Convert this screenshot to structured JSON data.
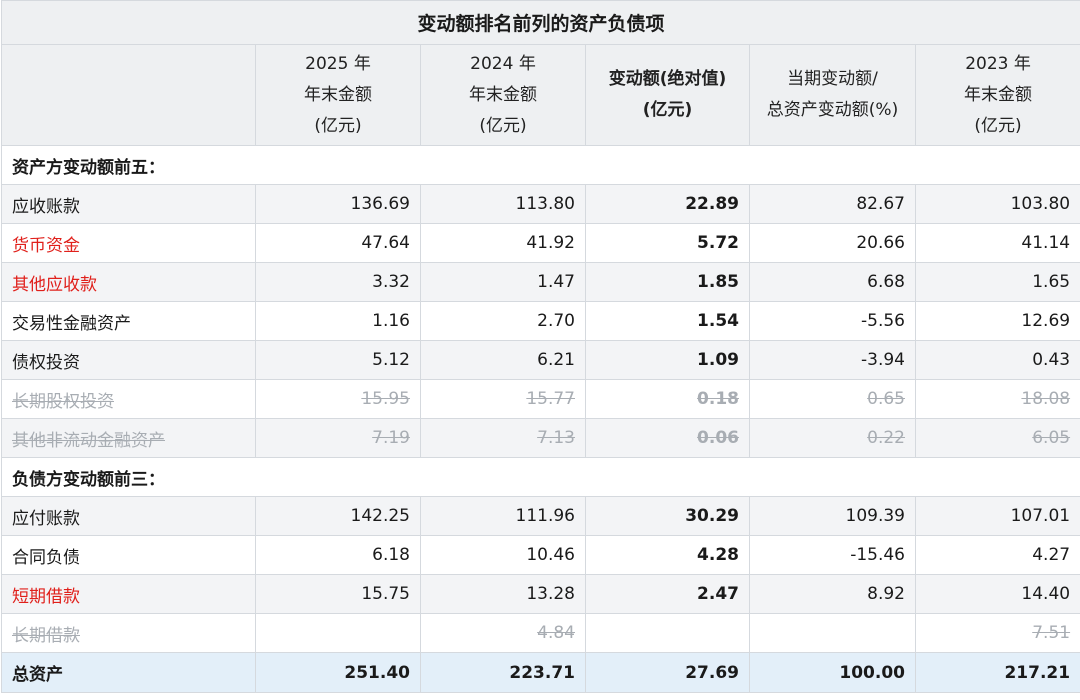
{
  "title": "变动额排名前列的资产负债项",
  "columns": [
    {
      "lines": [
        "2025 年",
        "年末金额",
        "(亿元)"
      ]
    },
    {
      "lines": [
        "2024 年",
        "年末金额",
        "(亿元)"
      ]
    },
    {
      "lines": [
        "变动额(绝对值)",
        "(亿元)"
      ]
    },
    {
      "lines": [
        "当期变动额/",
        "总资产变动额(%)"
      ]
    },
    {
      "lines": [
        "2023 年",
        "年末金额",
        "(亿元)"
      ]
    }
  ],
  "sections": [
    {
      "label": "资产方变动额前五：",
      "rows": [
        {
          "name": "应收账款",
          "y2025": "136.69",
          "y2024": "113.80",
          "change": "22.89",
          "ratio": "82.67",
          "y2023": "103.80"
        },
        {
          "name": "货币资金",
          "y2025": "47.64",
          "y2024": "41.92",
          "change": "5.72",
          "ratio": "20.66",
          "y2023": "41.14"
        },
        {
          "name": "其他应收款",
          "y2025": "3.32",
          "y2024": "1.47",
          "change": "1.85",
          "ratio": "6.68",
          "y2023": "1.65"
        },
        {
          "name": "交易性金融资产",
          "y2025": "1.16",
          "y2024": "2.70",
          "change": "1.54",
          "ratio": "-5.56",
          "y2023": "12.69"
        },
        {
          "name": "债权投资",
          "y2025": "5.12",
          "y2024": "6.21",
          "change": "1.09",
          "ratio": "-3.94",
          "y2023": "0.43"
        },
        {
          "name": "长期股权投资",
          "y2025": "15.95",
          "y2024": "15.77",
          "change": "0.18",
          "ratio": "0.65",
          "y2023": "18.08"
        },
        {
          "name": "其他非流动金融资产",
          "y2025": "7.19",
          "y2024": "7.13",
          "change": "0.06",
          "ratio": "0.22",
          "y2023": "6.05"
        }
      ]
    },
    {
      "label": "负债方变动额前三：",
      "rows": [
        {
          "name": "应付账款",
          "y2025": "142.25",
          "y2024": "111.96",
          "change": "30.29",
          "ratio": "109.39",
          "y2023": "107.01"
        },
        {
          "name": "合同负债",
          "y2025": "6.18",
          "y2024": "10.46",
          "change": "4.28",
          "ratio": "-15.46",
          "y2023": "4.27"
        },
        {
          "name": "短期借款",
          "y2025": "15.75",
          "y2024": "13.28",
          "change": "2.47",
          "ratio": "8.92",
          "y2023": "14.40"
        },
        {
          "name": "长期借款",
          "y2025": "",
          "y2024": "4.84",
          "change": "",
          "ratio": "",
          "y2023": "7.51"
        }
      ]
    }
  ],
  "total": {
    "name": "总资产",
    "y2025": "251.40",
    "y2024": "223.71",
    "change": "27.69",
    "ratio": "100.00",
    "y2023": "217.21"
  },
  "colors": {
    "highlight_red": "#e0201b",
    "struck_gray": "#a8adb3",
    "total_bg": "#e3eff9",
    "header_bg": "#eef0f2"
  }
}
